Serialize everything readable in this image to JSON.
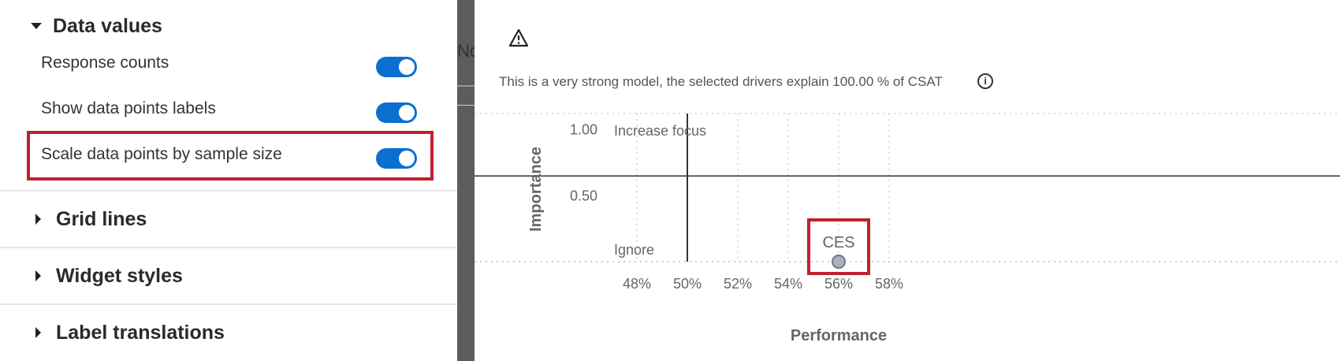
{
  "left_panel": {
    "data_values": {
      "title": "Data values",
      "options": [
        {
          "label": "Response counts",
          "enabled": true
        },
        {
          "label": "Show data points labels",
          "enabled": true
        },
        {
          "label": "Scale data points by sample size",
          "enabled": true
        }
      ]
    },
    "sections": [
      {
        "title": "Grid lines"
      },
      {
        "title": "Widget styles"
      },
      {
        "title": "Label translations"
      }
    ]
  },
  "right_panel": {
    "peek_text": "No",
    "model_text": "This is a very strong model, the selected drivers explain 100.00 % of CSAT",
    "colors": {
      "highlight": "#c0212f",
      "toggle": "#0b6fcf",
      "point": "#a9b1bd"
    }
  },
  "chart_data": {
    "type": "scatter",
    "xlabel": "Performance",
    "ylabel": "Importance",
    "x_ticks": [
      "48%",
      "50%",
      "52%",
      "54%",
      "56%",
      "58%"
    ],
    "x_tick_values": [
      48,
      50,
      52,
      54,
      56,
      58
    ],
    "y_ticks": [
      "1.00",
      "0.50"
    ],
    "y_tick_values": [
      1.0,
      0.5
    ],
    "xlim": [
      46,
      58
    ],
    "ylim": [
      0,
      1.1
    ],
    "quadrant_labels": [
      "Increase focus",
      "Ignore"
    ],
    "points": [
      {
        "label": "CES",
        "x": 56,
        "y": 0
      }
    ]
  }
}
